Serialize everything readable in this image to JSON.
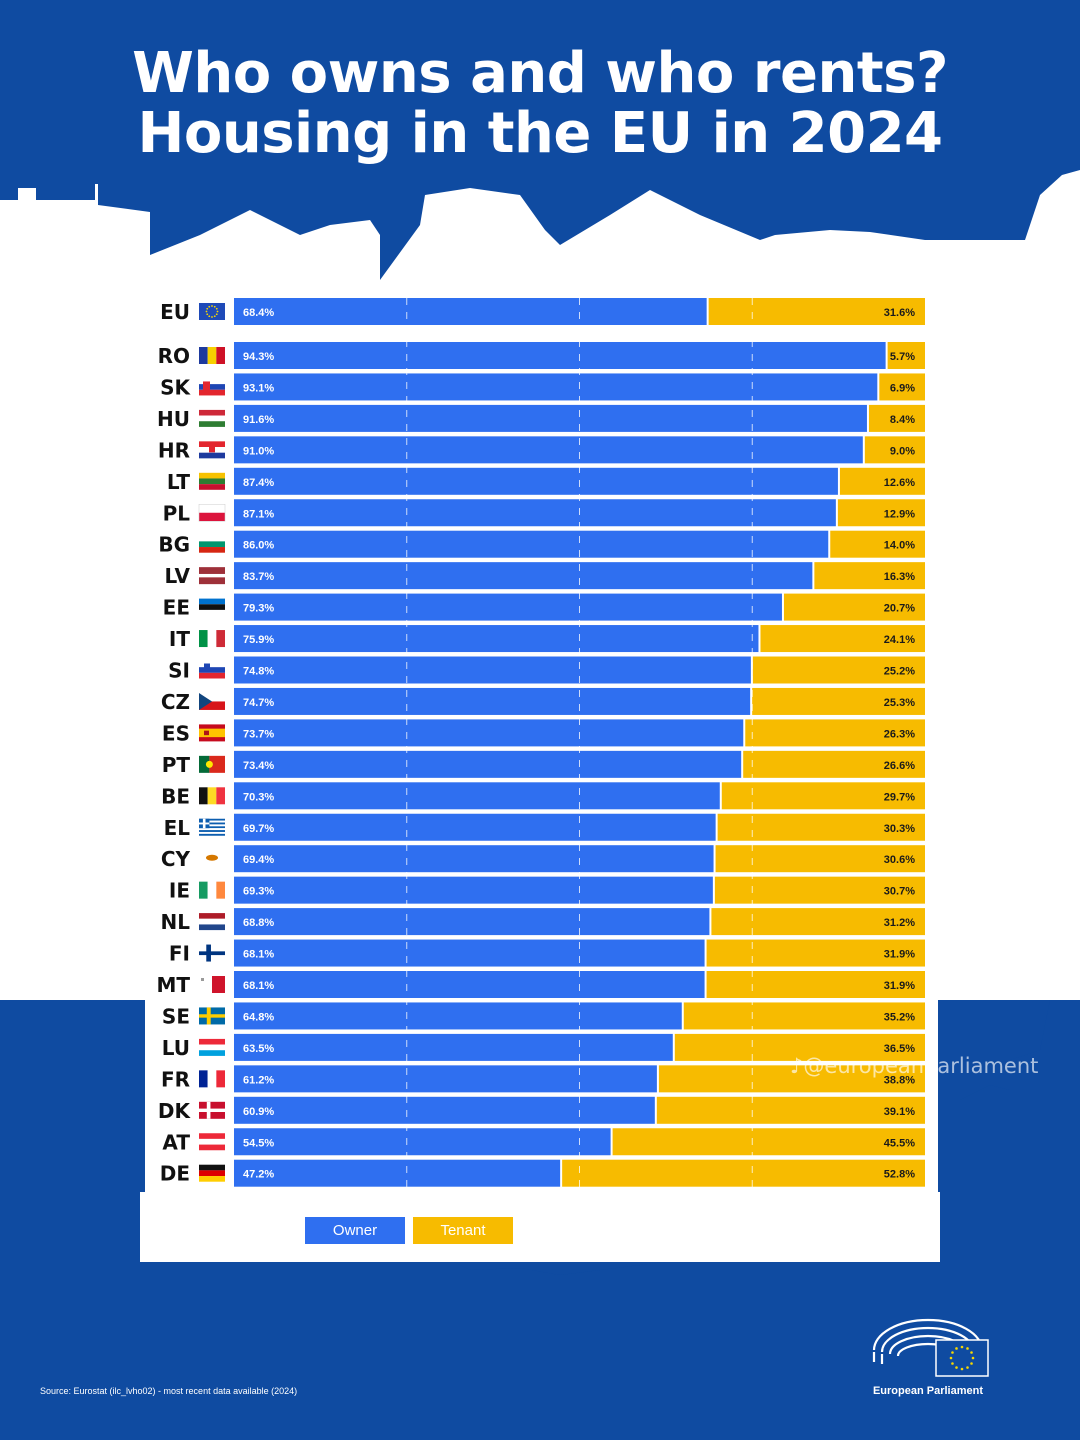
{
  "title_line1": "Who owns and who rents?",
  "title_line2": "Housing in the EU in 2024",
  "chart_data": {
    "type": "bar",
    "orientation": "horizontal",
    "stacked": true,
    "categories": [
      "EU",
      "RO",
      "SK",
      "HU",
      "HR",
      "LT",
      "PL",
      "BG",
      "LV",
      "EE",
      "IT",
      "SI",
      "CZ",
      "ES",
      "PT",
      "BE",
      "EL",
      "CY",
      "IE",
      "NL",
      "FI",
      "MT",
      "SE",
      "LU",
      "FR",
      "DK",
      "AT",
      "DE"
    ],
    "series": [
      {
        "name": "Owner",
        "color": "#2f6ff0",
        "values": [
          68.4,
          94.3,
          93.1,
          91.6,
          91.0,
          87.4,
          87.1,
          86.0,
          83.7,
          79.3,
          75.9,
          74.8,
          74.7,
          73.7,
          73.4,
          70.3,
          69.7,
          69.4,
          69.3,
          68.8,
          68.1,
          68.1,
          64.8,
          63.5,
          61.2,
          60.9,
          54.5,
          47.2
        ]
      },
      {
        "name": "Tenant",
        "color": "#f7bb00",
        "values": [
          31.6,
          5.7,
          6.9,
          8.4,
          9.0,
          12.6,
          12.9,
          14.0,
          16.3,
          20.7,
          24.1,
          25.2,
          25.3,
          26.3,
          26.6,
          29.7,
          30.3,
          30.6,
          30.7,
          31.2,
          31.9,
          31.9,
          35.2,
          36.5,
          38.8,
          39.1,
          45.5,
          52.8
        ]
      }
    ],
    "labels_owner": [
      "68.4%",
      "94.3%",
      "93.1%",
      "91.6%",
      "91.0%",
      "87.4%",
      "87.1%",
      "86.0%",
      "83.7%",
      "79.3%",
      "75.9%",
      "74.8%",
      "74.7%",
      "73.7%",
      "73.4%",
      "70.3%",
      "69.7%",
      "69.4%",
      "69.3%",
      "68.8%",
      "68.1%",
      "68.1%",
      "64.8%",
      "63.5%",
      "61.2%",
      "60.9%",
      "54.5%",
      "47.2%"
    ],
    "labels_tenant": [
      "31.6%",
      "5.7%",
      "6.9%",
      "8.4%",
      "9.0%",
      "12.6%",
      "12.9%",
      "14.0%",
      "16.3%",
      "20.7%",
      "24.1%",
      "25.2%",
      "25.3%",
      "26.3%",
      "26.6%",
      "29.7%",
      "30.3%",
      "30.6%",
      "30.7%",
      "31.2%",
      "31.9%",
      "31.9%",
      "35.2%",
      "36.5%",
      "38.8%",
      "39.1%",
      "45.5%",
      "52.8%"
    ],
    "xlim": [
      0,
      100
    ],
    "grid": true,
    "legend_position": "bottom"
  },
  "flags": [
    "eu-flag",
    "ro-flag",
    "sk-flag",
    "hu-flag",
    "hr-flag",
    "lt-flag",
    "pl-flag",
    "bg-flag",
    "lv-flag",
    "ee-flag",
    "it-flag",
    "si-flag",
    "cz-flag",
    "es-flag",
    "pt-flag",
    "be-flag",
    "el-flag",
    "cy-flag",
    "ie-flag",
    "nl-flag",
    "fi-flag",
    "mt-flag",
    "se-flag",
    "lu-flag",
    "fr-flag",
    "dk-flag",
    "at-flag",
    "de-flag"
  ],
  "legend": {
    "owner": "Owner",
    "tenant": "Tenant"
  },
  "source": "Source: Eurostat (ilc_lvho02) - most recent data available (2024)",
  "logo_label": "European Parliament",
  "watermark": "@europeanparliament",
  "colors": {
    "background": "#0f4ba1",
    "owner": "#2f6ff0",
    "tenant": "#f7bb00",
    "panel": "#ffffff"
  }
}
